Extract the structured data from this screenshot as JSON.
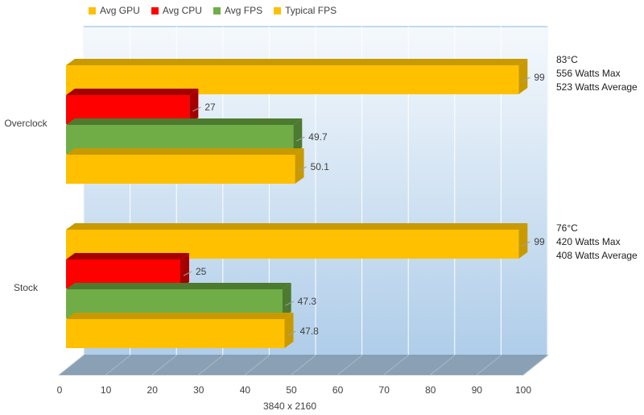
{
  "chart_data": {
    "type": "bar",
    "orientation": "horizontal",
    "title": "",
    "xlabel": "3840 x 2160",
    "ylabel": "",
    "xlim": [
      0,
      100
    ],
    "xticks": [
      0,
      10,
      20,
      30,
      40,
      50,
      60,
      70,
      80,
      90,
      100
    ],
    "grid": true,
    "legend_position": "top",
    "categories": [
      "Overclock",
      "Stock"
    ],
    "series": [
      {
        "name": "Avg GPU",
        "color": "#FFC000",
        "side_color": "#C89A00",
        "values": [
          99,
          99
        ]
      },
      {
        "name": "Avg CPU",
        "color": "#FF0000",
        "side_color": "#A50000",
        "values": [
          27,
          25
        ]
      },
      {
        "name": "Avg FPS",
        "color": "#70AD47",
        "side_color": "#4C7A2F",
        "values": [
          49.7,
          47.3
        ]
      },
      {
        "name": "Typical FPS",
        "color": "#FFC000",
        "side_color": "#C89A00",
        "values": [
          50.1,
          47.8
        ]
      }
    ],
    "annotations": [
      {
        "category": "Overclock",
        "lines": [
          "83°C",
          "556 Watts Max",
          "523 Watts Average"
        ]
      },
      {
        "category": "Stock",
        "lines": [
          "76°C",
          "420 Watts Max",
          "408 Watts Average"
        ]
      }
    ]
  }
}
